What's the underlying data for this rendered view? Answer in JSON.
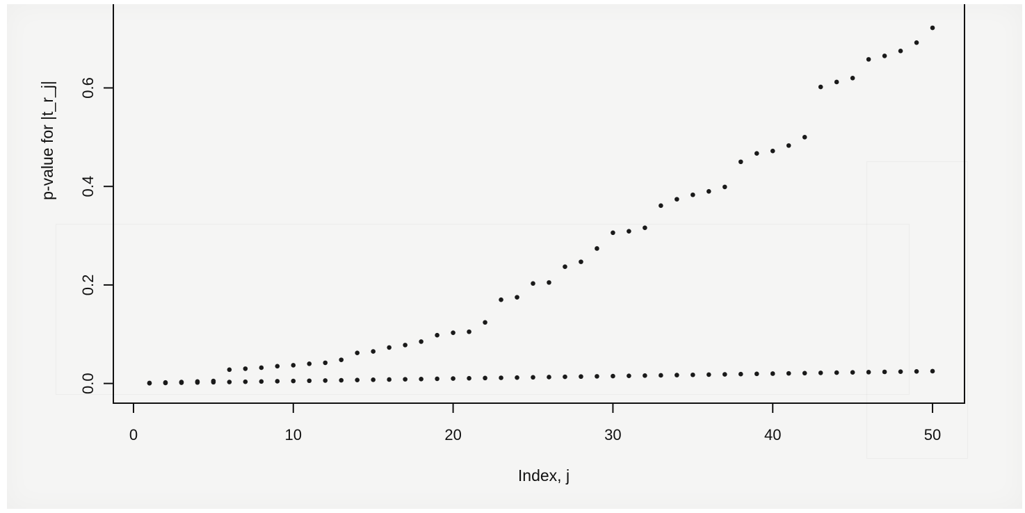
{
  "chart_data": {
    "type": "scatter",
    "title": "",
    "xlabel": "Index, j",
    "ylabel": "p-value for |t_r_j|",
    "xlim": [
      -1,
      52
    ],
    "ylim": [
      -0.04,
      0.77
    ],
    "xticks": [
      0,
      10,
      20,
      30,
      40,
      50
    ],
    "xtick_labels": [
      "0",
      "10",
      "20",
      "30",
      "40",
      "50"
    ],
    "yticks": [
      0.0,
      0.2,
      0.4,
      0.6
    ],
    "ytick_labels": [
      "0.0",
      "0.2",
      "0.4",
      "0.6"
    ],
    "grid": false,
    "series": [
      {
        "x": [
          1,
          2,
          3,
          4,
          5,
          6,
          7,
          8,
          9,
          10,
          11,
          12,
          13,
          14,
          15,
          16,
          17,
          18,
          19,
          20,
          21,
          22,
          23,
          24,
          25,
          26,
          27,
          28,
          29,
          30,
          31,
          32,
          33,
          34,
          35,
          36,
          37,
          38,
          39,
          40,
          41,
          42,
          43,
          44,
          45,
          46,
          47,
          48,
          49,
          50
        ],
        "y": [
          0.001,
          0.002,
          0.003,
          0.004,
          0.005,
          0.028,
          0.03,
          0.032,
          0.035,
          0.037,
          0.04,
          0.042,
          0.048,
          0.062,
          0.065,
          0.073,
          0.078,
          0.085,
          0.098,
          0.103,
          0.105,
          0.124,
          0.17,
          0.175,
          0.203,
          0.205,
          0.237,
          0.247,
          0.274,
          0.306,
          0.309,
          0.316,
          0.361,
          0.374,
          0.383,
          0.39,
          0.399,
          0.45,
          0.467,
          0.472,
          0.483,
          0.5,
          0.602,
          0.612,
          0.62,
          0.658,
          0.665,
          0.675,
          0.692,
          0.722
        ]
      },
      {
        "x": [
          1,
          2,
          3,
          4,
          5,
          6,
          7,
          8,
          9,
          10,
          11,
          12,
          13,
          14,
          15,
          16,
          17,
          18,
          19,
          20,
          21,
          22,
          23,
          24,
          25,
          26,
          27,
          28,
          29,
          30,
          31,
          32,
          33,
          34,
          35,
          36,
          37,
          38,
          39,
          40,
          41,
          42,
          43,
          44,
          45,
          46,
          47,
          48,
          49,
          50
        ],
        "y": [
          0.0005,
          0.001,
          0.0015,
          0.002,
          0.0025,
          0.003,
          0.0035,
          0.004,
          0.0045,
          0.005,
          0.0055,
          0.006,
          0.0065,
          0.007,
          0.0075,
          0.008,
          0.0085,
          0.009,
          0.0095,
          0.01,
          0.0105,
          0.011,
          0.0115,
          0.012,
          0.0125,
          0.013,
          0.0135,
          0.014,
          0.0145,
          0.015,
          0.0155,
          0.016,
          0.0165,
          0.017,
          0.0175,
          0.018,
          0.0185,
          0.019,
          0.0195,
          0.02,
          0.0205,
          0.021,
          0.0215,
          0.022,
          0.0225,
          0.023,
          0.0235,
          0.024,
          0.0245,
          0.025
        ]
      }
    ]
  }
}
